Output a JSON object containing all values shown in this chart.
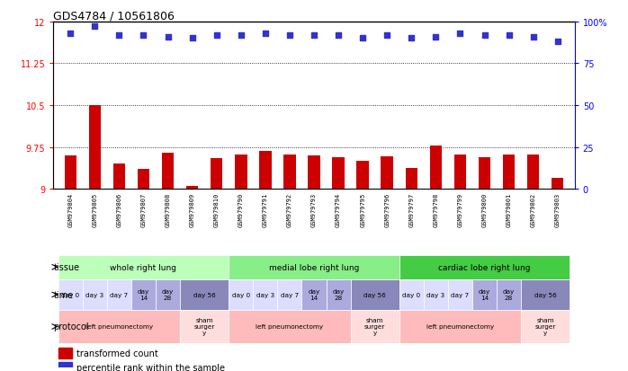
{
  "title": "GDS4784 / 10561806",
  "samples": [
    "GSM979804",
    "GSM979805",
    "GSM979806",
    "GSM979807",
    "GSM979808",
    "GSM979809",
    "GSM979810",
    "GSM979790",
    "GSM979791",
    "GSM979792",
    "GSM979793",
    "GSM979794",
    "GSM979795",
    "GSM979796",
    "GSM979797",
    "GSM979798",
    "GSM979799",
    "GSM979800",
    "GSM979801",
    "GSM979802",
    "GSM979803"
  ],
  "bar_values": [
    9.6,
    10.5,
    9.45,
    9.35,
    9.65,
    9.05,
    9.55,
    9.62,
    9.68,
    9.62,
    9.6,
    9.56,
    9.51,
    9.58,
    9.38,
    9.78,
    9.62,
    9.56,
    9.62,
    9.62,
    9.2
  ],
  "dot_values": [
    93,
    97,
    92,
    92,
    91,
    90,
    92,
    92,
    93,
    92,
    92,
    92,
    90,
    92,
    90,
    91,
    93,
    92,
    92,
    91,
    88
  ],
  "ylim_left": [
    9.0,
    12.0
  ],
  "ylim_right": [
    0,
    100
  ],
  "yticks_left": [
    9.0,
    9.75,
    10.5,
    11.25,
    12.0
  ],
  "yticks_right": [
    0,
    25,
    50,
    75,
    100
  ],
  "ytick_labels_left": [
    "9",
    "9.75",
    "10.5",
    "11.25",
    "12"
  ],
  "ytick_labels_right": [
    "0",
    "25",
    "50",
    "75",
    "100%"
  ],
  "hlines": [
    9.75,
    10.5,
    11.25
  ],
  "bar_color": "#cc0000",
  "dot_color": "#3333cc",
  "tissue_colors": [
    "#bbffbb",
    "#88ee88",
    "#44cc44"
  ],
  "time_data": [
    [
      0,
      1,
      "day 0",
      "#ddddff"
    ],
    [
      1,
      2,
      "day 3",
      "#ddddff"
    ],
    [
      2,
      3,
      "day 7",
      "#ddddff"
    ],
    [
      3,
      4,
      "day\n14",
      "#aaaadd"
    ],
    [
      4,
      5,
      "day\n28",
      "#aaaadd"
    ],
    [
      5,
      7,
      "day 56",
      "#8888bb"
    ],
    [
      7,
      8,
      "day 0",
      "#ddddff"
    ],
    [
      8,
      9,
      "day 3",
      "#ddddff"
    ],
    [
      9,
      10,
      "day 7",
      "#ddddff"
    ],
    [
      10,
      11,
      "day\n14",
      "#aaaadd"
    ],
    [
      11,
      12,
      "day\n28",
      "#aaaadd"
    ],
    [
      12,
      14,
      "day 56",
      "#8888bb"
    ],
    [
      14,
      15,
      "day 0",
      "#ddddff"
    ],
    [
      15,
      16,
      "day 3",
      "#ddddff"
    ],
    [
      16,
      17,
      "day 7",
      "#ddddff"
    ],
    [
      17,
      18,
      "day\n14",
      "#aaaadd"
    ],
    [
      18,
      19,
      "day\n28",
      "#aaaadd"
    ],
    [
      19,
      21,
      "day 56",
      "#8888bb"
    ]
  ],
  "proto_data": [
    [
      0,
      5,
      "left pneumonectomy",
      "#ffbbbb"
    ],
    [
      5,
      7,
      "sham\nsurger\ny",
      "#ffdddd"
    ],
    [
      7,
      12,
      "left pneumonectomy",
      "#ffbbbb"
    ],
    [
      12,
      14,
      "sham\nsurger\ny",
      "#ffdddd"
    ],
    [
      14,
      19,
      "left pneumonectomy",
      "#ffbbbb"
    ],
    [
      19,
      21,
      "sham\nsurger\ny",
      "#ffdddd"
    ]
  ],
  "tissue_data": [
    [
      0,
      7,
      "whole right lung",
      0
    ],
    [
      7,
      14,
      "medial lobe right lung",
      1
    ],
    [
      14,
      21,
      "cardiac lobe right lung",
      2
    ]
  ],
  "background_color": "#ffffff"
}
